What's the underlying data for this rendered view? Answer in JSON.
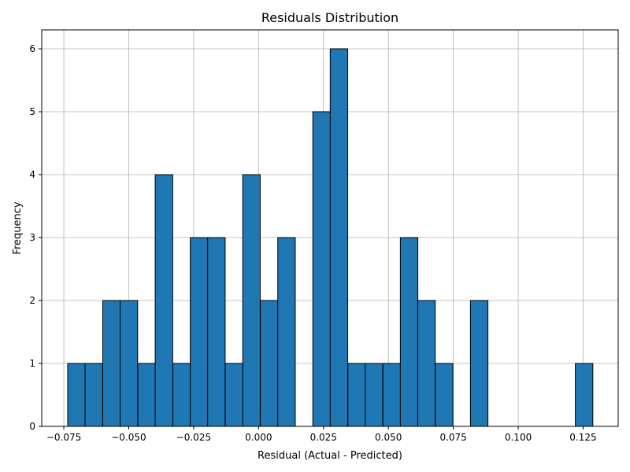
{
  "chart_data": {
    "type": "bar",
    "title": "Residuals Distribution",
    "xlabel": "Residual (Actual - Predicted)",
    "ylabel": "Frequency",
    "xlim": [
      -0.0835,
      0.1385
    ],
    "ylim": [
      0,
      6.3
    ],
    "grid": true,
    "bar_color": "#1f77b4",
    "edge_color": "#000000",
    "bin_width": 0.00674,
    "bins": [
      {
        "start": -0.0735,
        "count": 1
      },
      {
        "start": -0.0668,
        "count": 1
      },
      {
        "start": -0.06,
        "count": 2
      },
      {
        "start": -0.0533,
        "count": 2
      },
      {
        "start": -0.0465,
        "count": 1
      },
      {
        "start": -0.0398,
        "count": 4
      },
      {
        "start": -0.033,
        "count": 1
      },
      {
        "start": -0.0263,
        "count": 3
      },
      {
        "start": -0.0196,
        "count": 3
      },
      {
        "start": -0.0128,
        "count": 1
      },
      {
        "start": -0.0061,
        "count": 4
      },
      {
        "start": 0.0007,
        "count": 2
      },
      {
        "start": 0.0074,
        "count": 3
      },
      {
        "start": 0.0142,
        "count": 0
      },
      {
        "start": 0.0209,
        "count": 5
      },
      {
        "start": 0.0276,
        "count": 6
      },
      {
        "start": 0.0344,
        "count": 1
      },
      {
        "start": 0.0411,
        "count": 1
      },
      {
        "start": 0.0479,
        "count": 1
      },
      {
        "start": 0.0546,
        "count": 3
      },
      {
        "start": 0.0613,
        "count": 2
      },
      {
        "start": 0.0681,
        "count": 1
      },
      {
        "start": 0.0748,
        "count": 0
      },
      {
        "start": 0.0816,
        "count": 2
      },
      {
        "start": 0.0883,
        "count": 0
      },
      {
        "start": 0.095,
        "count": 0
      },
      {
        "start": 0.1018,
        "count": 0
      },
      {
        "start": 0.1085,
        "count": 0
      },
      {
        "start": 0.1153,
        "count": 0
      },
      {
        "start": 0.122,
        "count": 1
      }
    ],
    "x_ticks": [
      {
        "value": -0.075,
        "label": "−0.075"
      },
      {
        "value": -0.05,
        "label": "−0.050"
      },
      {
        "value": -0.025,
        "label": "−0.025"
      },
      {
        "value": 0.0,
        "label": "0.000"
      },
      {
        "value": 0.025,
        "label": "0.025"
      },
      {
        "value": 0.05,
        "label": "0.050"
      },
      {
        "value": 0.075,
        "label": "0.075"
      },
      {
        "value": 0.1,
        "label": "0.100"
      },
      {
        "value": 0.125,
        "label": "0.125"
      }
    ],
    "y_ticks": [
      {
        "value": 0,
        "label": "0"
      },
      {
        "value": 1,
        "label": "1"
      },
      {
        "value": 2,
        "label": "2"
      },
      {
        "value": 3,
        "label": "3"
      },
      {
        "value": 4,
        "label": "4"
      },
      {
        "value": 5,
        "label": "5"
      },
      {
        "value": 6,
        "label": "6"
      }
    ]
  }
}
